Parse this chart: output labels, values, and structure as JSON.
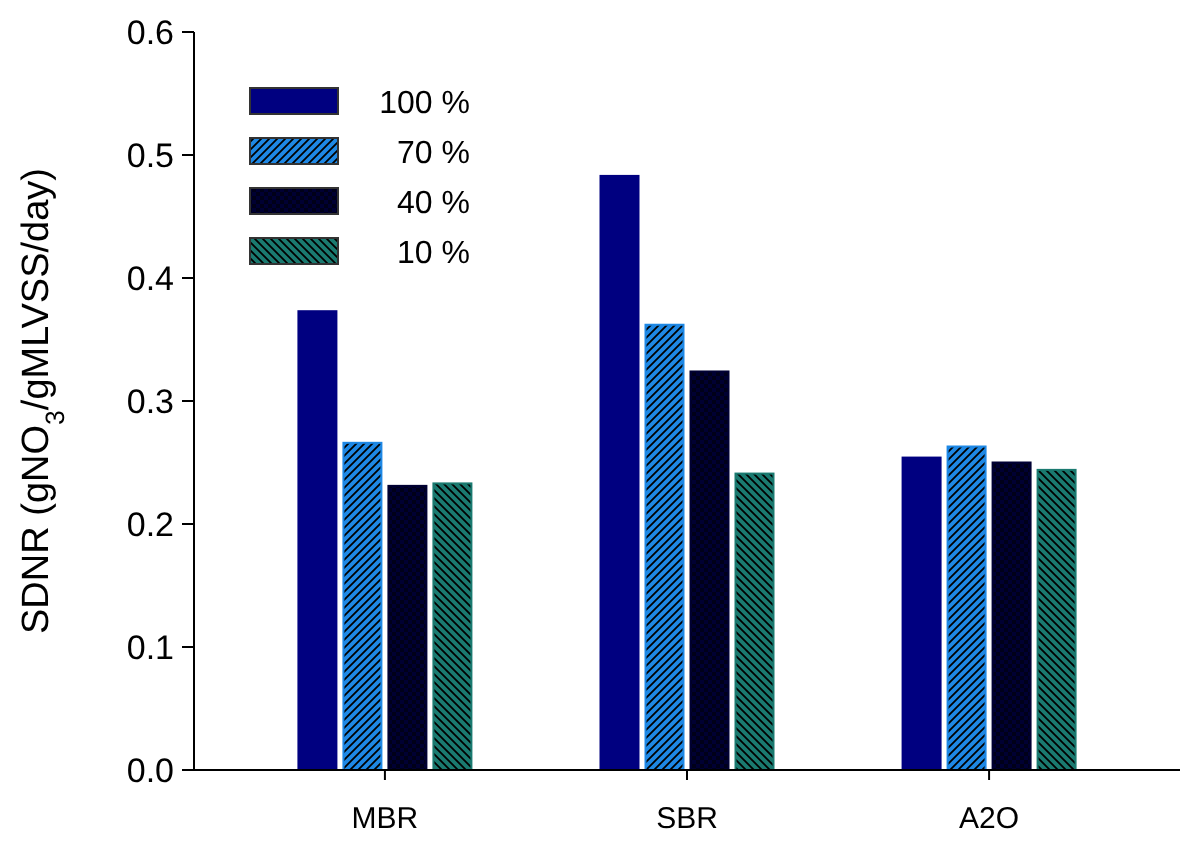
{
  "chart_data": {
    "type": "bar",
    "ylabel": "SDNR (gNO$_{3}$/gMLVSS/day)",
    "categories": [
      "MBR",
      "SBR",
      "A2O"
    ],
    "series": [
      {
        "name": "100 %",
        "color": "#000080",
        "values": [
          0.373,
          0.483,
          0.254
        ]
      },
      {
        "name": "70 %",
        "color": "#1e88e5",
        "values": [
          0.266,
          0.362,
          0.263
        ]
      },
      {
        "name": "40 %",
        "color": "#000033",
        "values": [
          0.231,
          0.324,
          0.25
        ]
      },
      {
        "name": "10 %",
        "color": "#1a7a70",
        "values": [
          0.233,
          0.241,
          0.244
        ]
      }
    ],
    "ylim": [
      0,
      0.6
    ],
    "yticks": [
      {
        "value": 0,
        "label": "0.0"
      },
      {
        "value": 0.1,
        "label": "0.1"
      },
      {
        "value": 0.2,
        "label": "0.2"
      },
      {
        "value": 0.3,
        "label": "0.3"
      },
      {
        "value": 0.4,
        "label": "0.4"
      },
      {
        "value": 0.5,
        "label": "0.5"
      },
      {
        "value": 0.6,
        "label": "0.6"
      }
    ],
    "grid": false,
    "legend": "top left"
  }
}
